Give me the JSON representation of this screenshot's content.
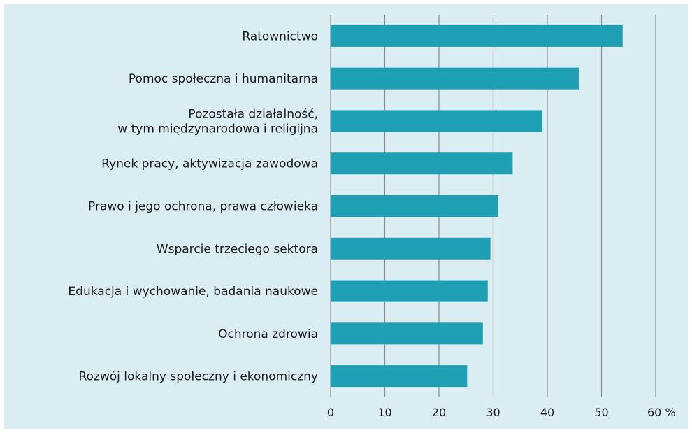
{
  "chart_data": {
    "type": "bar",
    "orientation": "horizontal",
    "categories": [
      [
        "Ratownictwo"
      ],
      [
        "Pomoc społeczna i humanitarna"
      ],
      [
        "Pozostała działalność,",
        "w tym międzynarodowa i religijna"
      ],
      [
        "Rynek pracy, aktywizacja zawodowa"
      ],
      [
        "Prawo i jego ochrona, prawa człowieka"
      ],
      [
        "Wsparcie trzeciego sektora"
      ],
      [
        "Edukacja i wychowanie, badania naukowe"
      ],
      [
        "Ochrona zdrowia"
      ],
      [
        "Rozwój lokalny społeczny i ekonomiczny"
      ]
    ],
    "values": [
      53.9,
      45.8,
      39.1,
      33.6,
      30.9,
      29.5,
      29.0,
      28.1,
      25.2
    ],
    "xlim": [
      0,
      60
    ],
    "xticks": [
      "0",
      "10",
      "20",
      "30",
      "40",
      "50",
      "60 %"
    ],
    "grid": "vertical",
    "colors": {
      "bar": "#1f9fb4",
      "background": "#daedf2",
      "grid": "#8c8c8c"
    }
  }
}
